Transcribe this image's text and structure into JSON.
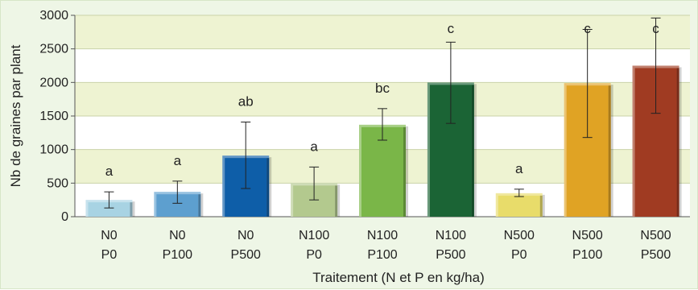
{
  "chart_data": {
    "type": "bar",
    "title": "",
    "xlabel": "Traitement (N et P en kg/ha)",
    "ylabel": "Nb de graines par plant",
    "ylim": [
      0,
      3000
    ],
    "yticks": [
      "0",
      "500",
      "1000",
      "1500",
      "2000",
      "2500",
      "3000"
    ],
    "categories": [
      {
        "line1": "N0",
        "line2": "P0"
      },
      {
        "line1": "N0",
        "line2": "P100"
      },
      {
        "line1": "N0",
        "line2": "P500"
      },
      {
        "line1": "N100",
        "line2": "P0"
      },
      {
        "line1": "N100",
        "line2": "P100"
      },
      {
        "line1": "N100",
        "line2": "P500"
      },
      {
        "line1": "N500",
        "line2": "P0"
      },
      {
        "line1": "N500",
        "line2": "P100"
      },
      {
        "line1": "N500",
        "line2": "P500"
      }
    ],
    "values": [
      250,
      370,
      910,
      500,
      1370,
      2000,
      350,
      1990,
      2250
    ],
    "error_low": [
      130,
      200,
      420,
      250,
      1140,
      1390,
      300,
      1180,
      1540
    ],
    "error_high": [
      370,
      530,
      1410,
      740,
      1610,
      2600,
      410,
      2790,
      2960
    ],
    "significance": [
      "a",
      "a",
      "ab",
      "a",
      "bc",
      "c",
      "a",
      "c",
      "c"
    ],
    "colors": [
      "#a8d3e3",
      "#5d9fcf",
      "#0e5ea8",
      "#b3c98e",
      "#7ab648",
      "#1b6435",
      "#e8dc6a",
      "#e0a324",
      "#a03b22"
    ],
    "grid": "alternating horizontal bands",
    "band_color": "#eef3d2"
  }
}
